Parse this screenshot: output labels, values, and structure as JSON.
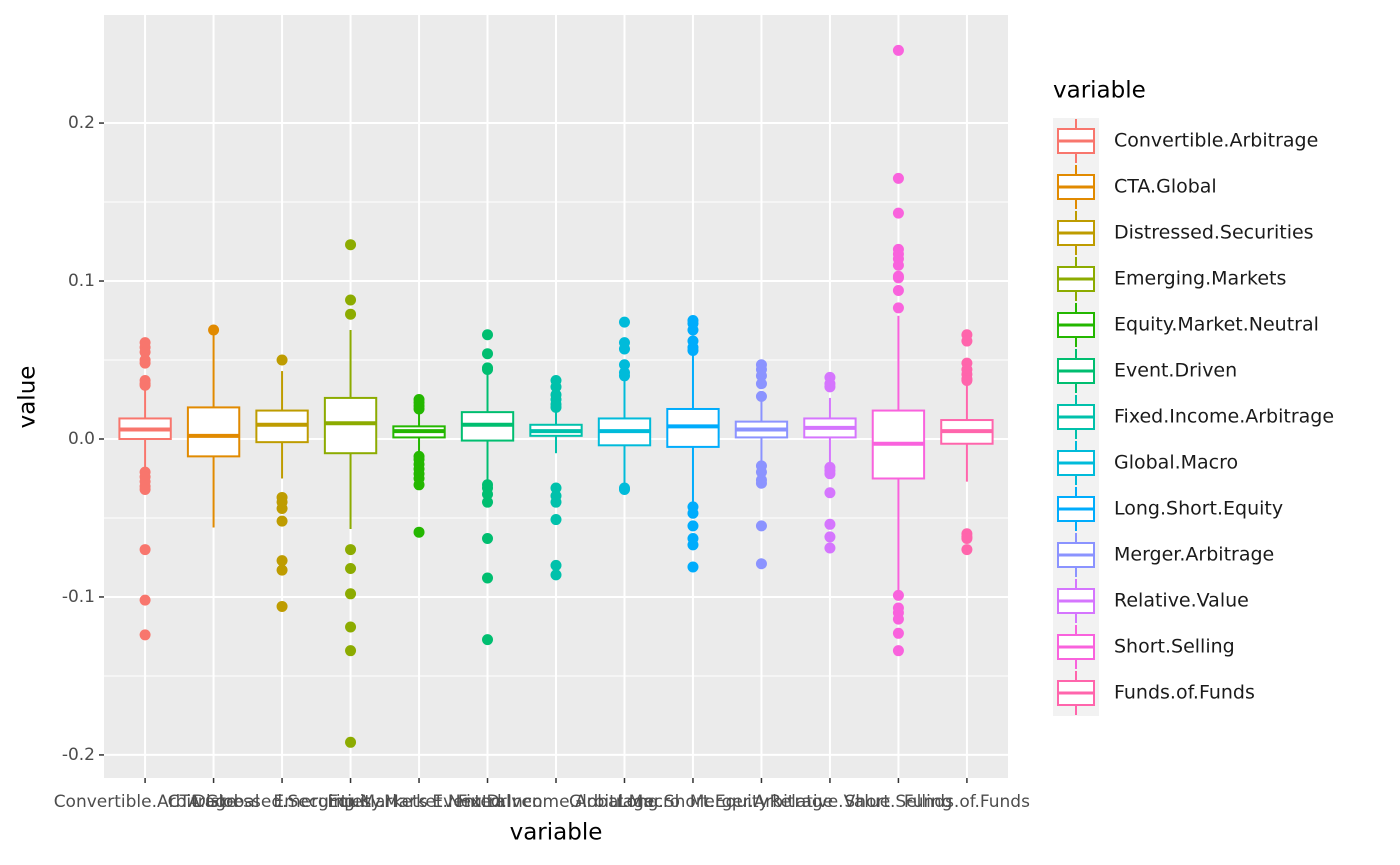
{
  "chart_data": {
    "type": "boxplot",
    "x_label": "variable",
    "y_label": "value",
    "legend_title": "variable",
    "categories": [
      "Convertible.Arbitrage",
      "CTA.Global",
      "Distressed.Securities",
      "Emerging.Markets",
      "Equity.Market.Neutral",
      "Event.Driven",
      "Fixed.Income.Arbitrage",
      "Global.Macro",
      "Long.Short.Equity",
      "Merger.Arbitrage",
      "Relative.Value",
      "Short.Selling",
      "Funds.of.Funds"
    ],
    "ylim": [
      -0.2146,
      0.2684
    ],
    "yticks": [
      -0.2,
      -0.1,
      {
        "value": 0,
        "label": "0.0"
      },
      0.1,
      0.2
    ],
    "minor_yticks": [
      -0.15,
      -0.05,
      0.05,
      0.15
    ],
    "grid": true,
    "legend_position": "right",
    "boxes": [
      {
        "color": "#F8766D",
        "whisker_low": -0.019,
        "q1": 0.0,
        "median": 0.006,
        "q3": 0.013,
        "whisker_high": 0.032,
        "outliers": [
          0.061,
          0.058,
          0.055,
          0.05,
          0.048,
          0.037,
          0.035,
          0.034,
          -0.021,
          -0.024,
          -0.027,
          -0.03,
          -0.032,
          -0.07,
          -0.102,
          -0.124
        ]
      },
      {
        "color": "#E18A00",
        "whisker_low": -0.056,
        "q1": -0.011,
        "median": 0.002,
        "q3": 0.02,
        "whisker_high": 0.069,
        "outliers": [
          0.069
        ]
      },
      {
        "color": "#BE9C00",
        "whisker_low": -0.025,
        "q1": -0.002,
        "median": 0.009,
        "q3": 0.018,
        "whisker_high": 0.043,
        "outliers": [
          0.05,
          -0.037,
          -0.04,
          -0.044,
          -0.052,
          -0.077,
          -0.083,
          -0.106
        ]
      },
      {
        "color": "#8CAB00",
        "whisker_low": -0.057,
        "q1": -0.009,
        "median": 0.01,
        "q3": 0.026,
        "whisker_high": 0.069,
        "outliers": [
          0.123,
          0.088,
          0.079,
          -0.07,
          -0.082,
          -0.098,
          -0.119,
          -0.134,
          -0.192
        ]
      },
      {
        "color": "#24B700",
        "whisker_low": -0.008,
        "q1": 0.001,
        "median": 0.005,
        "q3": 0.008,
        "whisker_high": 0.017,
        "outliers": [
          0.025,
          0.023,
          0.021,
          0.019,
          -0.011,
          -0.013,
          -0.016,
          -0.019,
          -0.022,
          -0.025,
          -0.029,
          -0.059
        ]
      },
      {
        "color": "#00BE70",
        "whisker_low": -0.027,
        "q1": -0.001,
        "median": 0.009,
        "q3": 0.017,
        "whisker_high": 0.041,
        "outliers": [
          0.066,
          0.054,
          0.045,
          0.044,
          -0.029,
          -0.031,
          -0.035,
          -0.04,
          -0.063,
          -0.088,
          -0.127
        ]
      },
      {
        "color": "#00C1AB",
        "whisker_low": -0.009,
        "q1": 0.002,
        "median": 0.005,
        "q3": 0.009,
        "whisker_high": 0.018,
        "outliers": [
          0.037,
          0.033,
          0.028,
          0.025,
          0.022,
          0.02,
          -0.031,
          -0.036,
          -0.04,
          -0.051,
          -0.08,
          -0.086
        ]
      },
      {
        "color": "#00BBDA",
        "whisker_low": -0.029,
        "q1": -0.004,
        "median": 0.005,
        "q3": 0.013,
        "whisker_high": 0.038,
        "outliers": [
          0.074,
          0.061,
          0.057,
          0.047,
          0.042,
          0.04,
          -0.031,
          -0.032
        ]
      },
      {
        "color": "#00ACFC",
        "whisker_low": -0.042,
        "q1": -0.005,
        "median": 0.008,
        "q3": 0.019,
        "whisker_high": 0.054,
        "outliers": [
          0.075,
          0.073,
          0.069,
          0.062,
          0.058,
          0.056,
          -0.043,
          -0.047,
          -0.055,
          -0.063,
          -0.067,
          -0.081
        ]
      },
      {
        "color": "#8B93FF",
        "whisker_low": -0.014,
        "q1": 0.001,
        "median": 0.006,
        "q3": 0.011,
        "whisker_high": 0.025,
        "outliers": [
          0.047,
          0.044,
          0.04,
          0.035,
          0.027,
          -0.017,
          -0.021,
          -0.026,
          -0.028,
          -0.055,
          -0.079
        ]
      },
      {
        "color": "#D575FE",
        "whisker_low": -0.016,
        "q1": 0.001,
        "median": 0.007,
        "q3": 0.013,
        "whisker_high": 0.026,
        "outliers": [
          0.039,
          0.035,
          0.033,
          -0.018,
          -0.02,
          -0.022,
          -0.034,
          -0.054,
          -0.062,
          -0.069
        ]
      },
      {
        "color": "#F962DD",
        "whisker_low": -0.098,
        "q1": -0.025,
        "median": -0.003,
        "q3": 0.018,
        "whisker_high": 0.078,
        "outliers": [
          0.246,
          0.165,
          0.143,
          0.12,
          0.117,
          0.114,
          0.11,
          0.103,
          0.102,
          0.094,
          0.083,
          -0.099,
          -0.107,
          -0.11,
          -0.114,
          -0.123,
          -0.134
        ]
      },
      {
        "color": "#FF65AC",
        "whisker_low": -0.027,
        "q1": -0.003,
        "median": 0.005,
        "q3": 0.012,
        "whisker_high": 0.035,
        "outliers": [
          0.066,
          0.062,
          0.048,
          0.044,
          0.041,
          0.038,
          0.037,
          -0.06,
          -0.062,
          -0.063,
          -0.07
        ]
      }
    ]
  }
}
